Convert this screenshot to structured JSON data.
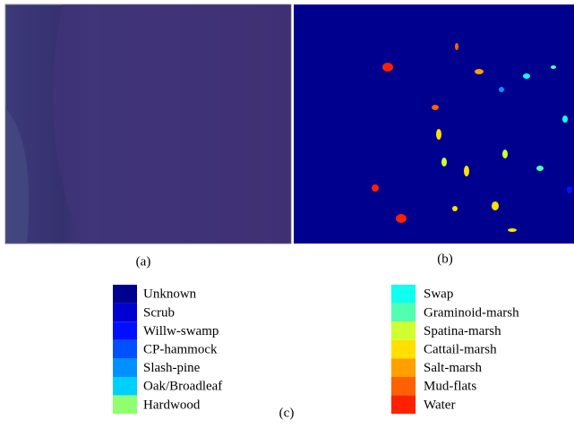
{
  "figure": {
    "panels": [
      {
        "label": "(a)"
      },
      {
        "label": "(b)"
      }
    ],
    "legend": {
      "label": "(c)",
      "columns": [
        [
          {
            "name": "Unknown",
            "color": "#00008f"
          },
          {
            "name": "Scrub",
            "color": "#0000d0"
          },
          {
            "name": "Willw-swamp",
            "color": "#0010ff"
          },
          {
            "name": "CP-hammock",
            "color": "#0050ff"
          },
          {
            "name": "Slash-pine",
            "color": "#0090ff"
          },
          {
            "name": "Oak/Broadleaf",
            "color": "#00d0ff"
          },
          {
            "name": "Hardwood",
            "color": "#8fff70"
          }
        ],
        [
          {
            "name": "Swap",
            "color": "#10ffef"
          },
          {
            "name": "Graminoid-marsh",
            "color": "#50ffb0"
          },
          {
            "name": "Spatina-marsh",
            "color": "#d0ff30"
          },
          {
            "name": "Cattail-marsh",
            "color": "#ffe000"
          },
          {
            "name": "Salt-marsh",
            "color": "#ffa000"
          },
          {
            "name": "Mud-flats",
            "color": "#ff6000"
          },
          {
            "name": "Water",
            "color": "#ff2000"
          }
        ]
      ]
    }
  }
}
